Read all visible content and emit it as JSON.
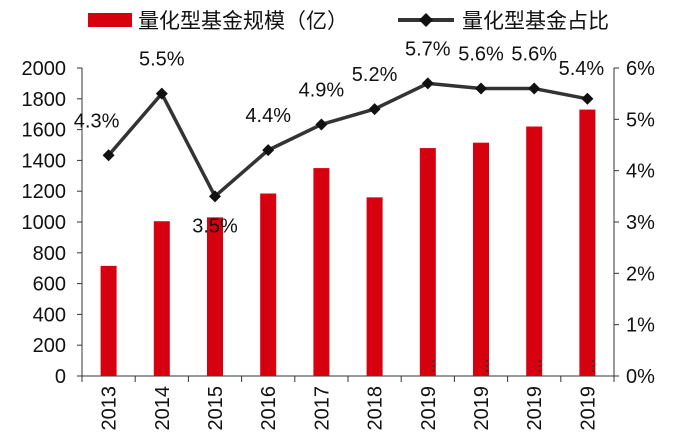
{
  "chart_data": {
    "type": "bar+line",
    "categories": [
      "2013",
      "2014",
      "2015",
      "2016",
      "2017",
      "2018",
      "2019",
      "2019",
      "2019",
      "2019"
    ],
    "series": [
      {
        "name": "量化型基金规模（亿）",
        "type": "bar",
        "axis": "left",
        "color": "#d7000f",
        "values": [
          715,
          1005,
          1030,
          1185,
          1350,
          1160,
          1480,
          1515,
          1620,
          1730
        ]
      },
      {
        "name": "量化型基金占比",
        "type": "line",
        "axis": "right",
        "color": "#333333",
        "values": [
          4.3,
          5.5,
          3.5,
          4.4,
          4.9,
          5.2,
          5.7,
          5.6,
          5.6,
          5.4
        ],
        "labels": [
          "4.3%",
          "5.5%",
          "3.5%",
          "4.4%",
          "4.9%",
          "5.2%",
          "5.7%",
          "5.6%",
          "5.6%",
          "5.4%"
        ]
      }
    ],
    "y_left": {
      "min": 0,
      "max": 2000,
      "step": 200,
      "ticks": [
        "0",
        "200",
        "400",
        "600",
        "800",
        "1000",
        "1200",
        "1400",
        "1600",
        "1800",
        "2000"
      ]
    },
    "y_right": {
      "min": 0,
      "max": 6,
      "step": 1,
      "ticks": [
        "0%",
        "1%",
        "2%",
        "3%",
        "4%",
        "5%",
        "6%"
      ]
    },
    "legend_position": "top",
    "grid": false
  }
}
